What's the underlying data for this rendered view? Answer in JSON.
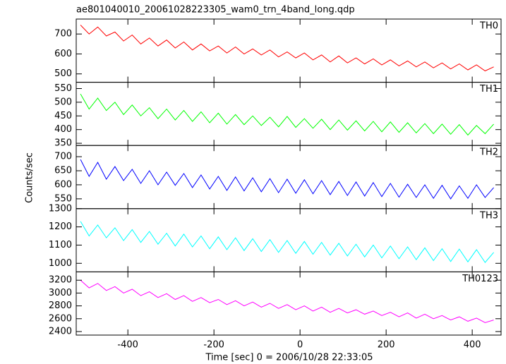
{
  "chart_data": [
    {
      "type": "line",
      "title": "ae801040010_20061028223305_wam0_trn_4band_long.qdp",
      "x": [
        -510,
        -490,
        -470,
        -450,
        -430,
        -410,
        -390,
        -370,
        -350,
        -330,
        -310,
        -290,
        -270,
        -250,
        -230,
        -210,
        -190,
        -170,
        -150,
        -130,
        -110,
        -90,
        -70,
        -50,
        -30,
        -10,
        10,
        30,
        50,
        70,
        90,
        110,
        130,
        150,
        170,
        190,
        210,
        230,
        250,
        270,
        290,
        310,
        330,
        350,
        370,
        390,
        410,
        430,
        450
      ],
      "series": [
        {
          "name": "TH0",
          "color": "#ff0000",
          "values": [
            745,
            700,
            735,
            690,
            710,
            665,
            695,
            650,
            680,
            640,
            670,
            630,
            660,
            620,
            650,
            615,
            640,
            605,
            635,
            600,
            625,
            595,
            620,
            585,
            610,
            580,
            605,
            570,
            595,
            560,
            590,
            555,
            580,
            550,
            575,
            545,
            570,
            540,
            565,
            535,
            560,
            530,
            555,
            525,
            550,
            520,
            545,
            515,
            535
          ]
        }
      ],
      "xlim": [
        -520,
        467
      ],
      "ylim": [
        458,
        775
      ],
      "yticks": [
        500,
        600,
        700
      ]
    },
    {
      "type": "line",
      "x": [
        -510,
        -490,
        -470,
        -450,
        -430,
        -410,
        -390,
        -370,
        -350,
        -330,
        -310,
        -290,
        -270,
        -250,
        -230,
        -210,
        -190,
        -170,
        -150,
        -130,
        -110,
        -90,
        -70,
        -50,
        -30,
        -10,
        10,
        30,
        50,
        70,
        90,
        110,
        130,
        150,
        170,
        190,
        210,
        230,
        250,
        270,
        290,
        310,
        330,
        350,
        370,
        390,
        410,
        430,
        450
      ],
      "series": [
        {
          "name": "TH1",
          "color": "#00ff00",
          "values": [
            530,
            475,
            515,
            470,
            500,
            455,
            490,
            450,
            480,
            440,
            475,
            435,
            470,
            430,
            465,
            425,
            460,
            420,
            455,
            418,
            450,
            415,
            445,
            410,
            448,
            408,
            440,
            405,
            438,
            400,
            435,
            398,
            432,
            395,
            430,
            392,
            428,
            390,
            425,
            388,
            422,
            385,
            420,
            383,
            418,
            380,
            415,
            385,
            420
          ]
        }
      ],
      "xlim": [
        -520,
        467
      ],
      "ylim": [
        342,
        573
      ],
      "yticks": [
        350,
        400,
        450,
        500,
        550
      ]
    },
    {
      "type": "line",
      "y_label": "Counts/sec",
      "x": [
        -510,
        -490,
        -470,
        -450,
        -430,
        -410,
        -390,
        -370,
        -350,
        -330,
        -310,
        -290,
        -270,
        -250,
        -230,
        -210,
        -190,
        -170,
        -150,
        -130,
        -110,
        -90,
        -70,
        -50,
        -30,
        -10,
        10,
        30,
        50,
        70,
        90,
        110,
        130,
        150,
        170,
        190,
        210,
        230,
        250,
        270,
        290,
        310,
        330,
        350,
        370,
        390,
        410,
        430,
        450
      ],
      "series": [
        {
          "name": "TH2",
          "color": "#0000ff",
          "values": [
            690,
            630,
            680,
            620,
            665,
            615,
            655,
            605,
            650,
            600,
            645,
            598,
            640,
            590,
            635,
            585,
            630,
            580,
            628,
            578,
            625,
            575,
            622,
            572,
            620,
            570,
            618,
            568,
            615,
            565,
            612,
            562,
            610,
            560,
            608,
            558,
            605,
            556,
            602,
            555,
            600,
            552,
            598,
            550,
            596,
            552,
            600,
            555,
            590
          ]
        }
      ],
      "xlim": [
        -520,
        467
      ],
      "ylim": [
        515,
        740
      ],
      "yticks": [
        550,
        600,
        650,
        700
      ]
    },
    {
      "type": "line",
      "x": [
        -510,
        -490,
        -470,
        -450,
        -430,
        -410,
        -390,
        -370,
        -350,
        -330,
        -310,
        -290,
        -270,
        -250,
        -230,
        -210,
        -190,
        -170,
        -150,
        -130,
        -110,
        -90,
        -70,
        -50,
        -30,
        -10,
        10,
        30,
        50,
        70,
        90,
        110,
        130,
        150,
        170,
        190,
        210,
        230,
        250,
        270,
        290,
        310,
        330,
        350,
        370,
        390,
        410,
        430,
        450
      ],
      "series": [
        {
          "name": "TH3",
          "color": "#00ffff",
          "values": [
            1230,
            1150,
            1210,
            1140,
            1195,
            1125,
            1185,
            1115,
            1175,
            1105,
            1165,
            1095,
            1160,
            1090,
            1150,
            1080,
            1145,
            1075,
            1140,
            1070,
            1135,
            1065,
            1130,
            1060,
            1125,
            1055,
            1120,
            1050,
            1115,
            1045,
            1110,
            1040,
            1105,
            1035,
            1100,
            1030,
            1095,
            1025,
            1090,
            1020,
            1085,
            1015,
            1080,
            1010,
            1078,
            1008,
            1075,
            1005,
            1060
          ]
        }
      ],
      "xlim": [
        -520,
        467
      ],
      "ylim": [
        953,
        1300
      ],
      "yticks": [
        1000,
        1100,
        1200,
        1300
      ]
    },
    {
      "type": "line",
      "x_label": "Time [sec] 0 = 2006/10/28 22:33:05",
      "x": [
        -510,
        -490,
        -470,
        -450,
        -430,
        -410,
        -390,
        -370,
        -350,
        -330,
        -310,
        -290,
        -270,
        -250,
        -230,
        -210,
        -190,
        -170,
        -150,
        -130,
        -110,
        -90,
        -70,
        -50,
        -30,
        -10,
        10,
        30,
        50,
        70,
        90,
        110,
        130,
        150,
        170,
        190,
        210,
        230,
        250,
        270,
        290,
        310,
        330,
        350,
        370,
        390,
        410,
        430,
        450
      ],
      "series": [
        {
          "name": "TH0123",
          "color": "#ff00ff",
          "values": [
            3200,
            3080,
            3150,
            3040,
            3100,
            3000,
            3060,
            2960,
            3020,
            2930,
            2990,
            2900,
            2960,
            2870,
            2930,
            2850,
            2900,
            2820,
            2880,
            2800,
            2860,
            2780,
            2840,
            2760,
            2820,
            2740,
            2800,
            2720,
            2780,
            2700,
            2760,
            2690,
            2740,
            2670,
            2720,
            2650,
            2700,
            2630,
            2690,
            2610,
            2670,
            2600,
            2650,
            2580,
            2630,
            2560,
            2610,
            2540,
            2580
          ]
        }
      ],
      "xlim": [
        -520,
        467
      ],
      "ylim": [
        2345,
        3330
      ],
      "yticks": [
        2400,
        2600,
        2800,
        3000,
        3200
      ],
      "xticks": [
        -400,
        -200,
        0,
        200,
        400
      ]
    }
  ]
}
